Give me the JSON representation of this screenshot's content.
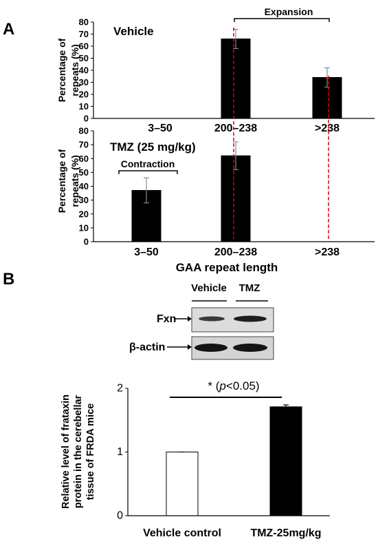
{
  "panels": {
    "a": "A",
    "b": "B"
  },
  "panel_a": {
    "ylabel_line1": "Percentage of",
    "ylabel_line2": "repeats (%)",
    "xlabel": "GAA repeat length",
    "expansion_label": "Expansion",
    "contraction_label": "Contraction"
  },
  "blot": {
    "col_labels": [
      "Vehicle",
      "TMZ"
    ],
    "row_labels": [
      "Fxn",
      "β-actin"
    ]
  },
  "panel_b_chart": {
    "ylabel_lines": [
      "Relative level of frataxin",
      "protein in the cerebellar",
      "tissue of FRDA mice"
    ],
    "sig_prefix": "* (",
    "sig_p": "p",
    "sig_suffix": "<0.05)"
  },
  "chart_data": [
    {
      "type": "bar",
      "title": "Vehicle",
      "categories": [
        "3–50",
        "200–238",
        ">238"
      ],
      "values": [
        0,
        66,
        34
      ],
      "errors": [
        0,
        8,
        8
      ],
      "ylabel": "Percentage of repeats (%)",
      "ylim": [
        0,
        80
      ],
      "yticks": [
        0,
        10,
        20,
        30,
        40,
        50,
        60,
        70,
        80
      ],
      "color": "#000000",
      "reference_line_color": "#e00000"
    },
    {
      "type": "bar",
      "title": "TMZ (25 mg/kg)",
      "categories": [
        "3–50",
        "200–238",
        ">238"
      ],
      "values": [
        37,
        62,
        0
      ],
      "errors": [
        9,
        10,
        0
      ],
      "ylabel": "Percentage of repeats (%)",
      "xlabel": "GAA repeat length",
      "ylim": [
        0,
        80
      ],
      "yticks": [
        0,
        10,
        20,
        30,
        40,
        50,
        60,
        70,
        80
      ],
      "color": "#000000",
      "reference_line_color": "#e00000"
    },
    {
      "type": "bar",
      "categories": [
        "Vehicle control",
        "TMZ-25mg/kg"
      ],
      "values": [
        1.0,
        1.71
      ],
      "errors": [
        0.0,
        0.03
      ],
      "colors": [
        "#ffffff",
        "#000000"
      ],
      "ylabel": "Relative level of frataxin protein in the cerebellar tissue of FRDA mice",
      "ylim": [
        0,
        2
      ],
      "yticks": [
        0,
        1,
        2
      ],
      "annotation": "* (p<0.05)"
    }
  ]
}
